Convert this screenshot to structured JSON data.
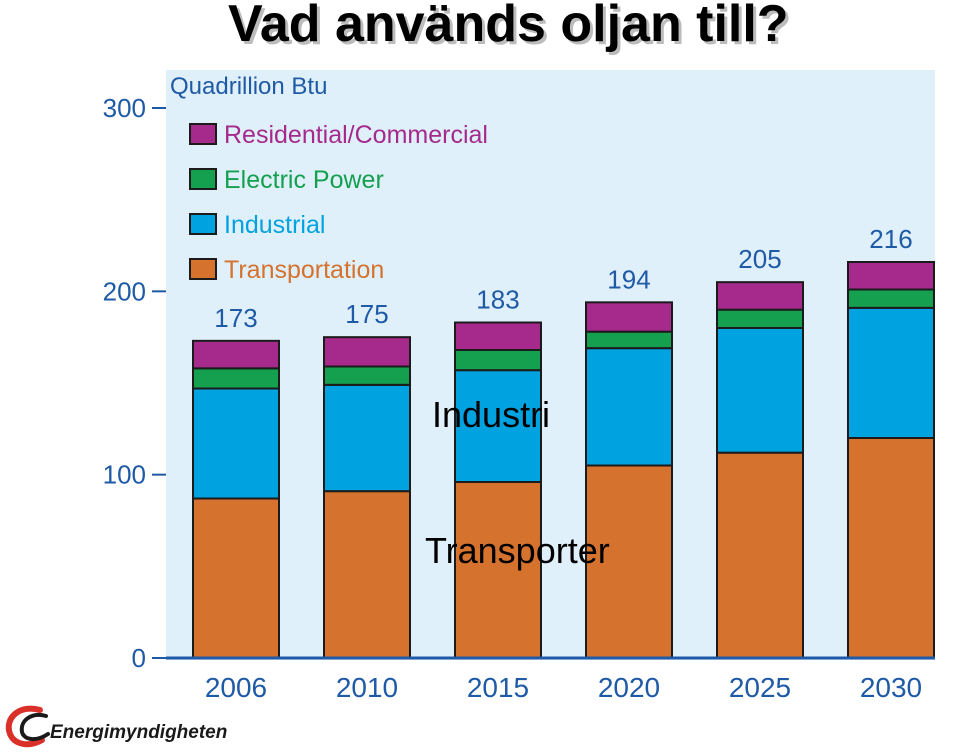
{
  "slide": {
    "title": "Vad används oljan till?",
    "overlay_industri": "Industri",
    "overlay_transporter": "Transporter",
    "logo_text": "Energimyndigheten"
  },
  "colors": {
    "plot_background": "#dff0fb",
    "axis_text": "#1f5aa6",
    "residential": "#a52a8c",
    "electric": "#15a050",
    "industrial": "#00a2e0",
    "transportation": "#d4722e",
    "logo_red": "#d9312a"
  },
  "chart_data": {
    "type": "bar",
    "stacked": true,
    "title": "",
    "ylabel": "Quadrillion Btu",
    "xlabel": "",
    "ylim": [
      0,
      300
    ],
    "yticks": [
      0,
      100,
      200,
      300
    ],
    "categories": [
      "2006",
      "2010",
      "2015",
      "2020",
      "2025",
      "2030"
    ],
    "totals": [
      173,
      175,
      183,
      194,
      205,
      216
    ],
    "series": [
      {
        "name": "Transportation",
        "color": "#d4722e",
        "values": [
          87,
          91,
          96,
          105,
          112,
          120
        ]
      },
      {
        "name": "Industrial",
        "color": "#00a2e0",
        "values": [
          60,
          58,
          61,
          64,
          68,
          71
        ]
      },
      {
        "name": "Electric Power",
        "color": "#15a050",
        "values": [
          11,
          10,
          11,
          9,
          10,
          10
        ]
      },
      {
        "name": "Residential/Commercial",
        "color": "#a52a8c",
        "values": [
          15,
          16,
          15,
          16,
          15,
          15
        ]
      }
    ],
    "legend": {
      "placement": "top-left",
      "order": [
        "Residential/Commercial",
        "Electric Power",
        "Industrial",
        "Transportation"
      ]
    },
    "grid": false
  }
}
